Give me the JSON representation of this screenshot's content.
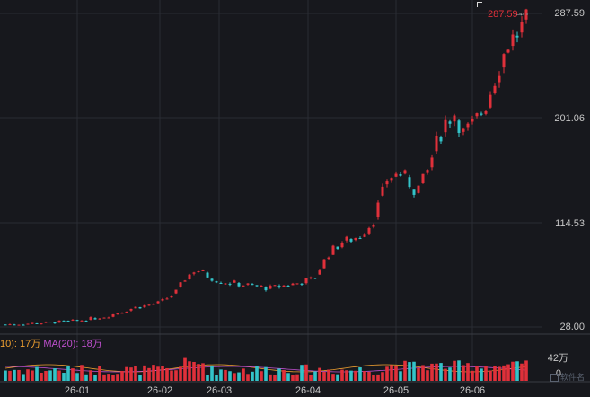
{
  "price_axis": {
    "ticks": [
      "287.59",
      "201.06",
      "114.53",
      "28.00"
    ]
  },
  "volume_axis": {
    "max_label": "42万",
    "zero_label": "0"
  },
  "date_axis": [
    "26-01",
    "26-02",
    "26-03",
    "26-04",
    "26-05",
    "26-06"
  ],
  "ma_legend": {
    "ma10": "10): 17万",
    "ma20": "MA(20): 18万"
  },
  "high_marker": {
    "label": "287.59",
    "arrow": "→"
  },
  "logo": {
    "text": "软件名"
  },
  "colors": {
    "up": "#e0303a",
    "down": "#33c3c9",
    "background": "#17181d",
    "grid": "#2a2c33",
    "ma10": "#f0a030",
    "ma20": "#c050d0"
  },
  "chart_data": {
    "type": "candlestick",
    "ylim": [
      28.0,
      287.59
    ],
    "volume_ylim": [
      0,
      42
    ],
    "volume_unit": "万",
    "x": [
      "26-01",
      "26-02",
      "26-03",
      "26-04",
      "26-05",
      "26-06"
    ],
    "close_anchors": [
      {
        "date": "25-12",
        "close": 30
      },
      {
        "date": "26-01",
        "close": 33
      },
      {
        "date": "26-02",
        "close": 47
      },
      {
        "date": "26-02-end",
        "close": 76
      },
      {
        "date": "26-03",
        "close": 66
      },
      {
        "date": "26-03-end",
        "close": 62
      },
      {
        "date": "26-04",
        "close": 67
      },
      {
        "date": "26-04-mid",
        "close": 98
      },
      {
        "date": "26-05",
        "close": 165
      },
      {
        "date": "26-05-mid",
        "close": 175
      },
      {
        "date": "26-06",
        "close": 215
      },
      {
        "date": "26-06-end",
        "close": 285
      }
    ]
  }
}
